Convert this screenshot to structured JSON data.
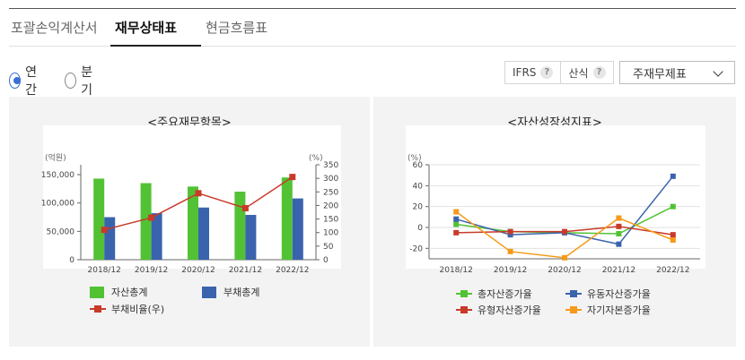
{
  "tabs": [
    {
      "label": "포괄손익계산서",
      "active": false
    },
    {
      "label": "재무상태표",
      "active": true
    },
    {
      "label": "현금흐름표",
      "active": false
    }
  ],
  "period": {
    "options": [
      "연간",
      "분기"
    ],
    "selected": "연간"
  },
  "options": {
    "ifrs": "IFRS",
    "calc": "산식",
    "help": "?",
    "select_value": "주재무제표"
  },
  "charts": {
    "left_title": "<주요재무항목>",
    "right_title": "<자산성장성지표>"
  },
  "legend_left": {
    "assets": "자산총계",
    "liabilities": "부채총계",
    "debt_ratio": "부채비율(우)"
  },
  "legend_right": {
    "total_assets": "총자산증가율",
    "current_assets": "유동자산증가율",
    "tangible_assets": "유형자산증가율",
    "equity": "자기자본증가율"
  },
  "colors": {
    "green": "#52c234",
    "blue": "#3a63ad",
    "red": "#c83a2a",
    "orange": "#f59a1a",
    "accent": "#3a6fd8"
  },
  "chart_data": [
    {
      "type": "bar",
      "title": "<주요재무항목>",
      "categories": [
        "2018/12",
        "2019/12",
        "2020/12",
        "2021/12",
        "2022/12"
      ],
      "y_left_label": "(억원)",
      "y_right_label": "(%)",
      "y_left_ticks": [
        "150,000",
        "100,000",
        "50,000",
        "0"
      ],
      "y_right_ticks": [
        "350",
        "300",
        "250",
        "200",
        "150",
        "100",
        "50",
        "0"
      ],
      "ylim_left": [
        0,
        160000
      ],
      "ylim_right": [
        0,
        350
      ],
      "series": [
        {
          "name": "자산총계",
          "kind": "bar",
          "values": [
            143000,
            135000,
            129000,
            120000,
            145000
          ]
        },
        {
          "name": "부채총계",
          "kind": "bar",
          "values": [
            75000,
            82000,
            92000,
            79000,
            108000
          ]
        },
        {
          "name": "부채비율(우)",
          "kind": "line",
          "values": [
            110,
            155,
            245,
            190,
            305
          ]
        }
      ]
    },
    {
      "type": "line",
      "title": "<자산성장성지표>",
      "categories": [
        "2018/12",
        "2019/12",
        "2020/12",
        "2021/12",
        "2022/12"
      ],
      "y_label": "(%)",
      "y_ticks": [
        "60",
        "40",
        "20",
        "0",
        "-20"
      ],
      "ylim": [
        -30,
        60
      ],
      "series": [
        {
          "name": "총자산증가율",
          "values": [
            3,
            -4,
            -5,
            -6,
            20
          ]
        },
        {
          "name": "유동자산증가율",
          "values": [
            8,
            -7,
            -5,
            -16,
            49
          ]
        },
        {
          "name": "유형자산증가율",
          "values": [
            -5,
            -4,
            -4,
            1,
            -7
          ]
        },
        {
          "name": "자기자본증가율",
          "values": [
            15,
            -23,
            -29,
            9,
            -12
          ]
        }
      ]
    }
  ]
}
